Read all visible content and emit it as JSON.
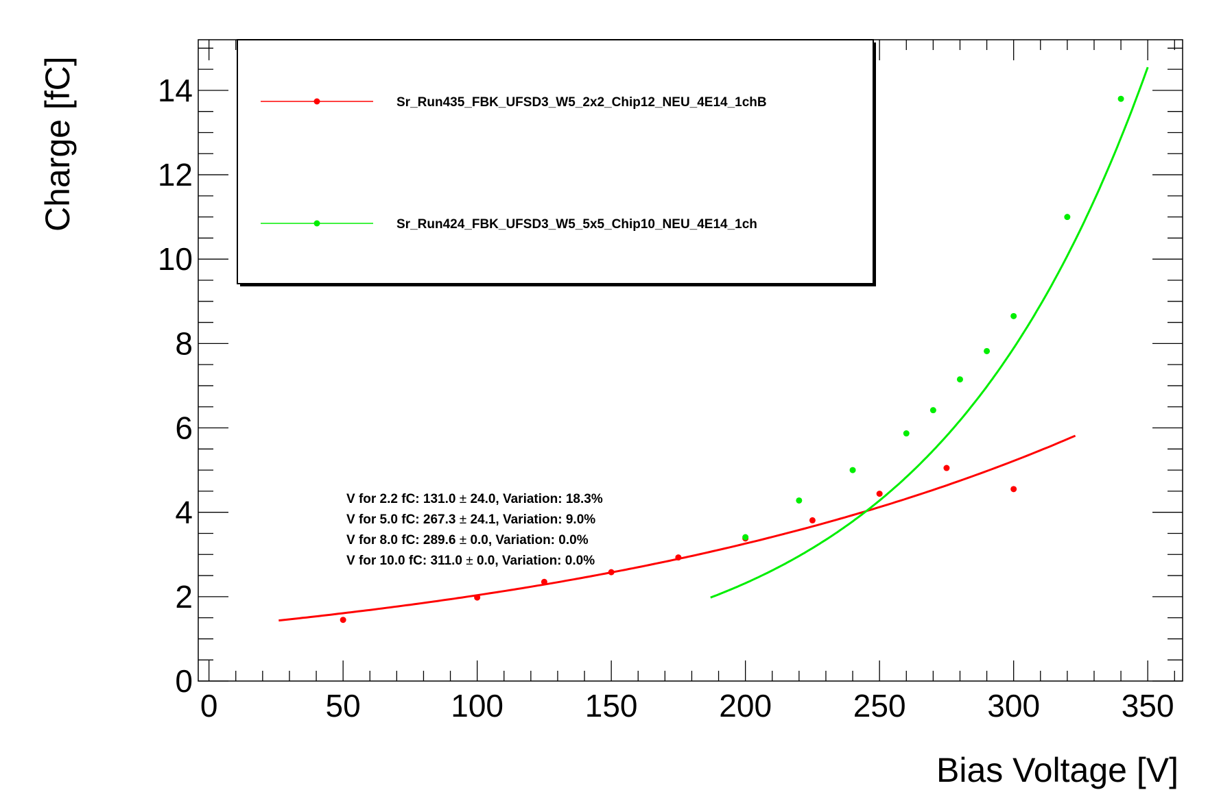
{
  "chart_data": {
    "type": "scatter",
    "xlabel": "Bias Voltage [V]",
    "ylabel": "Charge [fC]",
    "xlim": [
      -4,
      363
    ],
    "ylim": [
      0,
      15.2
    ],
    "x_ticks": [
      "0",
      "50",
      "100",
      "150",
      "200",
      "250",
      "300",
      "350"
    ],
    "x_tick_values": [
      0,
      50,
      100,
      150,
      200,
      250,
      300,
      350
    ],
    "y_ticks": [
      "0",
      "2",
      "4",
      "6",
      "8",
      "10",
      "12",
      "14"
    ],
    "y_tick_values": [
      0,
      2,
      4,
      6,
      8,
      10,
      12,
      14
    ],
    "grid": false,
    "legend_position": "top-left",
    "series": [
      {
        "name": "Sr_Run435_FBK_UFSD3_W5_2x2_Chip12_NEU_4E14_1chB",
        "color": "#ff0000",
        "x": [
          50,
          100,
          125,
          150,
          175,
          200,
          225,
          250,
          275,
          300
        ],
        "y": [
          1.45,
          1.98,
          2.35,
          2.58,
          2.93,
          3.38,
          3.81,
          4.44,
          5.05,
          4.55
        ],
        "fit": {
          "kind": "exponential",
          "x_range": [
            26,
            323
          ],
          "a": 1.27,
          "b": 0.00471
        }
      },
      {
        "name": "Sr_Run424_FBK_UFSD3_W5_5x5_Chip10_NEU_4E14_1ch",
        "color": "#00ee00",
        "x": [
          200,
          220,
          240,
          260,
          270,
          280,
          290,
          300,
          320,
          340
        ],
        "y": [
          3.41,
          4.28,
          5.0,
          5.87,
          6.42,
          7.15,
          7.82,
          8.65,
          11.0,
          13.8
        ],
        "fit": {
          "kind": "exponential",
          "x_range": [
            187,
            350
          ],
          "a": 0.2006,
          "b": 0.01224
        }
      }
    ],
    "annotations": [
      {
        "before": "V for 2.2 fC: 131.0 ",
        "pm": "±",
        "after": " 24.0, Variation: 18.3%"
      },
      {
        "before": "V for 5.0 fC: 267.3 ",
        "pm": "±",
        "after": " 24.1, Variation: 9.0%"
      },
      {
        "before": "V for 8.0 fC: 289.6 ",
        "pm": "±",
        "after": " 0.0, Variation: 0.0%"
      },
      {
        "before": "V for 10.0 fC: 311.0 ",
        "pm": "±",
        "after": " 0.0, Variation: 0.0%"
      }
    ]
  }
}
